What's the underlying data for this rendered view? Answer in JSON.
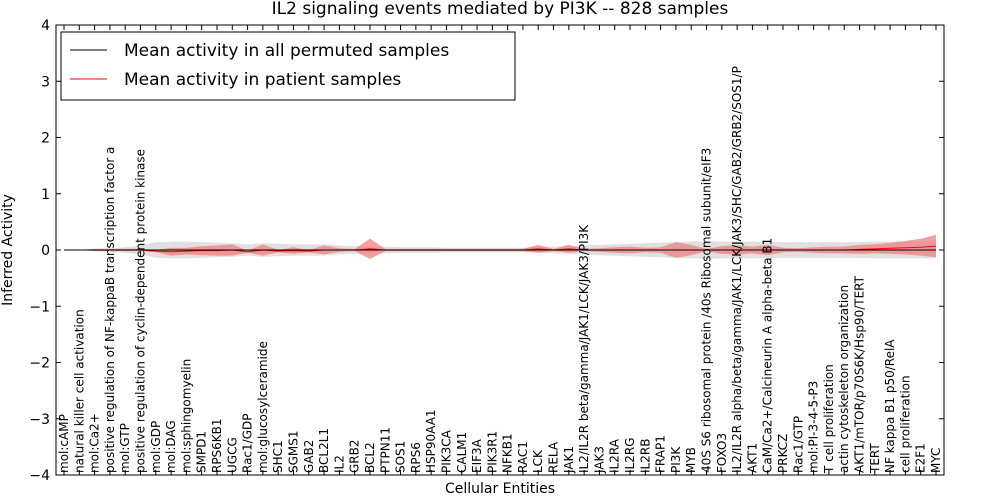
{
  "chart_data": {
    "type": "line",
    "title": "IL2 signaling events mediated by PI3K -- 828 samples",
    "xlabel": "Cellular Entities",
    "ylabel": "Inferred Activity",
    "ylim": [
      -4,
      4
    ],
    "yticks": [
      -4,
      -3,
      -2,
      -1,
      0,
      1,
      2,
      3,
      4
    ],
    "ytick_labels": [
      "−4",
      "−3",
      "−2",
      "−1",
      "0",
      "1",
      "2",
      "3",
      "4"
    ],
    "grid": false,
    "legend_position": "top-left",
    "categories": [
      "mol:cAMP",
      "natural killer cell activation",
      "mol:Ca2+",
      "positive regulation of NF-kappaB transcription factor a",
      "mol:GTP",
      "positive regulation of cyclin-dependent protein kinase",
      "mol:GDP",
      "mol:DAG",
      "mol:sphingomyelin",
      "SMPD1",
      "RPS6KB1",
      "UGCG",
      "Rac1/GDP",
      "mol:glucosylceramide",
      "SHC1",
      "SGMS1",
      "GAB2",
      "BCL2L1",
      "IL2",
      "GRB2",
      "BCL2",
      "PTPN11",
      "SOS1",
      "RPS6",
      "HSP90AA1",
      "PIK3CA",
      "CALM1",
      "EIF3A",
      "PIK3R1",
      "NFKB1",
      "RAC1",
      "LCK",
      "RELA",
      "JAK1",
      "IL2/IL2R beta/gamma/JAK1/LCK/JAK3/PI3K",
      "JAK3",
      "IL2RA",
      "IL2RG",
      "IL2RB",
      "FRAP1",
      "PI3K",
      "MYB",
      "40S S6 ribosomal protein /40s Ribosomal subunit/eIF3",
      "FOXO3",
      "IL2/IL2R alpha/beta/gamma/JAK1/LCK/JAK3/SHC/GAB2/GRB2/SOS1/P",
      "AKT1",
      "CaM/Ca2+/Calcineurin A alpha-beta B1",
      "PRKCZ",
      "Rac1/GTP",
      "mol:PI-3-4-5-P3",
      "T cell proliferation",
      "actin cytoskeleton organization",
      "AKT1/mTOR/p70S6K/Hsp90/TERT",
      "TERT",
      "NF kappa B1 p50/RelA",
      "cell proliferation",
      "E2F1",
      "MYC"
    ],
    "series": [
      {
        "name": "Mean activity in all permuted samples",
        "color": "#000000",
        "band_color": "#cccccc",
        "values": [
          0,
          0,
          0,
          0,
          0,
          0,
          0,
          0,
          0,
          0,
          0,
          0,
          0,
          0,
          0,
          0,
          0,
          0,
          0,
          0,
          0,
          0,
          0,
          0,
          0,
          0,
          0,
          0,
          0,
          0,
          0,
          0,
          0,
          0,
          0,
          0,
          0,
          0,
          0,
          0,
          0,
          0,
          0,
          0,
          0,
          0,
          0,
          0,
          0,
          0,
          0,
          0,
          0,
          0,
          0,
          0,
          0,
          0
        ],
        "band": [
          0,
          0,
          0.02,
          0.03,
          0.05,
          0.08,
          0.14,
          0.15,
          0.15,
          0.14,
          0.13,
          0.12,
          0.1,
          0.12,
          0.11,
          0.1,
          0.1,
          0.1,
          0.08,
          0.07,
          0.06,
          0.06,
          0.05,
          0.05,
          0.05,
          0.04,
          0.04,
          0.04,
          0.04,
          0.04,
          0.04,
          0.05,
          0.06,
          0.07,
          0.08,
          0.09,
          0.1,
          0.11,
          0.12,
          0.13,
          0.14,
          0.15,
          0.16,
          0.15,
          0.15,
          0.15,
          0.14,
          0.14,
          0.14,
          0.14,
          0.14,
          0.14,
          0.14,
          0.15,
          0.15,
          0.15,
          0.15,
          0.15
        ]
      },
      {
        "name": "Mean activity in patient samples",
        "color": "#ff0000",
        "band_color": "#f08080",
        "values": [
          0,
          0,
          0,
          0,
          0,
          0,
          -0.02,
          -0.03,
          -0.02,
          -0.01,
          -0.01,
          0,
          -0.03,
          0,
          -0.02,
          -0.01,
          -0.02,
          0,
          0,
          0,
          0.02,
          0,
          0,
          0,
          0,
          0,
          0,
          0,
          0,
          0,
          0,
          0.02,
          0,
          0.02,
          0,
          0,
          0,
          0,
          0,
          0,
          0,
          0,
          0,
          0,
          0,
          0,
          0,
          0,
          0,
          0,
          0,
          0,
          0.01,
          0.02,
          0.03,
          0.04,
          0.05,
          0.07
        ],
        "band": [
          0,
          0,
          0.02,
          0.02,
          0.02,
          0.02,
          0.02,
          0.07,
          0.06,
          0.08,
          0.09,
          0.1,
          0.02,
          0.1,
          0.02,
          0.06,
          0.02,
          0.08,
          0.03,
          0.02,
          0.18,
          0.02,
          0.02,
          0.02,
          0.02,
          0.02,
          0.02,
          0.02,
          0.02,
          0.02,
          0.02,
          0.07,
          0.02,
          0.07,
          0.02,
          0.03,
          0.05,
          0.06,
          0.04,
          0.05,
          0.14,
          0.09,
          0.02,
          0.07,
          0.08,
          0.06,
          0.09,
          0.04,
          0.03,
          0.05,
          0.06,
          0.06,
          0.08,
          0.08,
          0.1,
          0.12,
          0.15,
          0.2
        ]
      }
    ]
  }
}
